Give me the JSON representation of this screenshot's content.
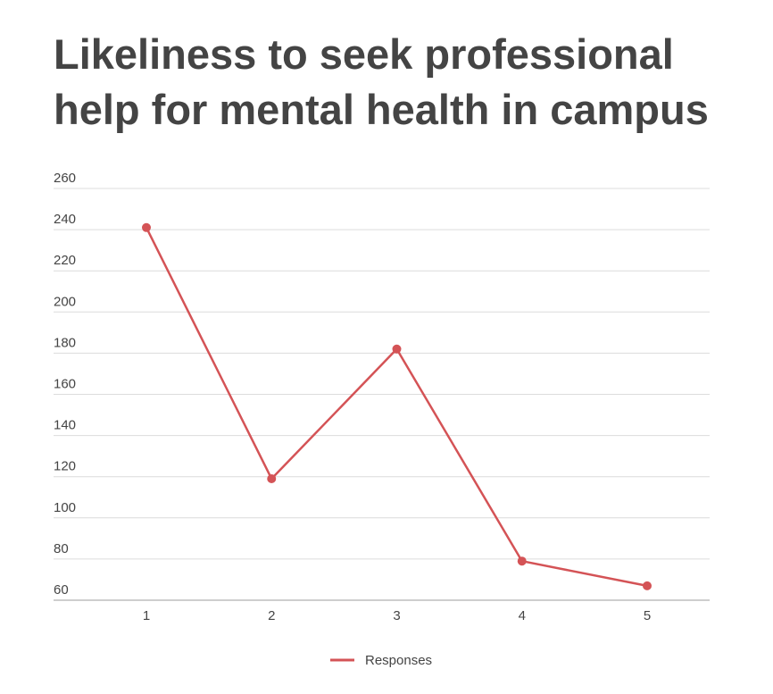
{
  "chart_data": {
    "type": "line",
    "title": "Likeliness to seek professional help for mental health in campus",
    "xlabel": "",
    "ylabel": "",
    "categories": [
      "1",
      "2",
      "3",
      "4",
      "5"
    ],
    "series": [
      {
        "name": "Responses",
        "color": "#d45356",
        "values": [
          241,
          119,
          182,
          79,
          67
        ]
      }
    ],
    "ylim": [
      60,
      260
    ],
    "yticks": [
      60,
      80,
      100,
      120,
      140,
      160,
      180,
      200,
      220,
      240,
      260
    ],
    "grid": true,
    "legend_position": "bottom"
  }
}
